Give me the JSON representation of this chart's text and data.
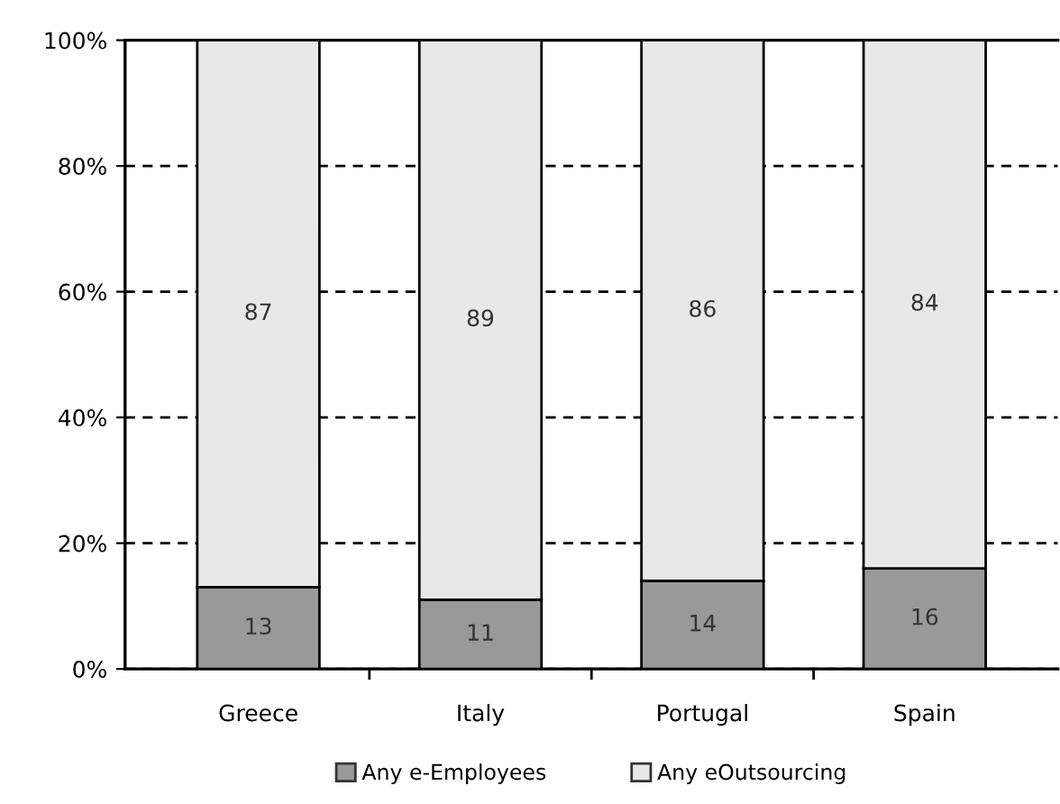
{
  "chart_data": {
    "type": "bar",
    "stacked": true,
    "categories": [
      "Greece",
      "Italy",
      "Portugal",
      "Spain"
    ],
    "series": [
      {
        "name": "Any e-Employees",
        "color": "#999999",
        "values": [
          13,
          11,
          14,
          16
        ]
      },
      {
        "name": "Any eOutsourcing",
        "color": "#e8e8e8",
        "values": [
          87,
          89,
          86,
          84
        ]
      }
    ],
    "ylim": [
      0,
      100
    ],
    "yticks": [
      {
        "value": 0,
        "label": "0%"
      },
      {
        "value": 20,
        "label": "20%"
      },
      {
        "value": 40,
        "label": "40%"
      },
      {
        "value": 60,
        "label": "60%"
      },
      {
        "value": 80,
        "label": "80%"
      },
      {
        "value": 100,
        "label": "100%"
      }
    ],
    "grid": "y",
    "line_style": "dashed",
    "legend": "bottom",
    "data_labels": true
  }
}
